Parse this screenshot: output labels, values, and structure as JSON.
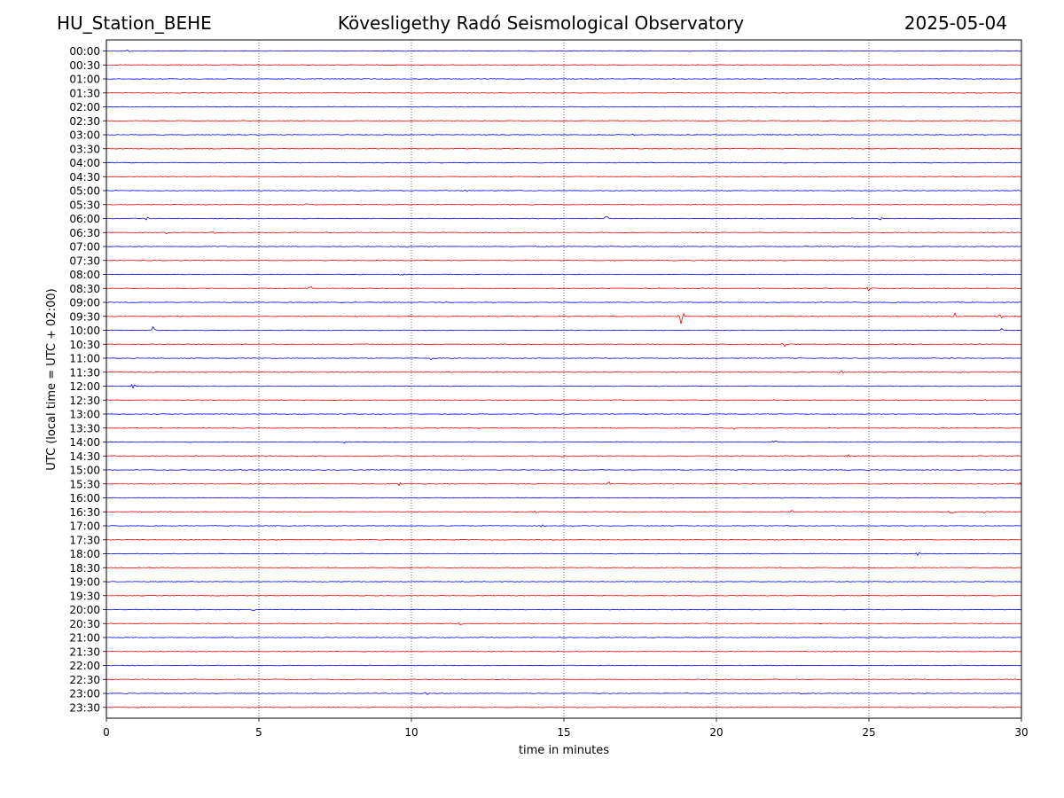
{
  "header": {
    "station": "HU_Station_BEHE",
    "title": "Kövesligethy Radó Seismological Observatory",
    "date": "2025-05-04"
  },
  "chart_data": {
    "type": "line",
    "title": "Kövesligethy Radó Seismological Observatory",
    "xlabel": "time in minutes",
    "ylabel": "UTC (local time = UTC + 02:00)",
    "xlim": [
      0,
      30
    ],
    "xticks": [
      0,
      5,
      10,
      15,
      20,
      25,
      30
    ],
    "grid": "vertical dotted at x ticks",
    "trace_colors": [
      "#0000ff",
      "#ff0000"
    ],
    "rows": [
      "00:00",
      "00:30",
      "01:00",
      "01:30",
      "02:00",
      "02:30",
      "03:00",
      "03:30",
      "04:00",
      "04:30",
      "05:00",
      "05:30",
      "06:00",
      "06:30",
      "07:00",
      "07:30",
      "08:00",
      "08:30",
      "09:00",
      "09:30",
      "10:00",
      "10:30",
      "11:00",
      "11:30",
      "12:00",
      "12:30",
      "13:00",
      "13:30",
      "14:00",
      "14:30",
      "15:00",
      "15:30",
      "16:00",
      "16:30",
      "17:00",
      "17:30",
      "18:00",
      "18:30",
      "19:00",
      "19:30",
      "20:00",
      "20:30",
      "21:00",
      "21:30",
      "22:00",
      "22:30",
      "23:00",
      "23:30"
    ],
    "events": [
      {
        "row": "00:00",
        "t": 0.7,
        "amp": 0.3
      },
      {
        "row": "03:00",
        "t": 17.3,
        "amp": 0.3
      },
      {
        "row": "05:00",
        "t": 11.8,
        "amp": 0.4
      },
      {
        "row": "05:00",
        "t": 20.4,
        "amp": 0.3
      },
      {
        "row": "05:30",
        "t": 6.6,
        "amp": 0.3
      },
      {
        "row": "06:00",
        "t": 1.35,
        "amp": 0.4
      },
      {
        "row": "06:00",
        "t": 16.4,
        "amp": 0.8
      },
      {
        "row": "06:00",
        "t": 24.5,
        "amp": 0.3
      },
      {
        "row": "06:00",
        "t": 25.4,
        "amp": 0.3
      },
      {
        "row": "06:30",
        "t": 3.5,
        "amp": 0.7
      },
      {
        "row": "06:30",
        "t": 2.0,
        "amp": 0.4
      },
      {
        "row": "07:00",
        "t": 9.8,
        "amp": 0.8
      },
      {
        "row": "08:00",
        "t": 9.7,
        "amp": 0.3
      },
      {
        "row": "08:30",
        "t": 6.7,
        "amp": 0.6
      },
      {
        "row": "08:30",
        "t": 25.0,
        "amp": 0.9
      },
      {
        "row": "09:30",
        "t": 18.85,
        "amp": 3.0
      },
      {
        "row": "09:30",
        "t": 27.8,
        "amp": 0.9
      },
      {
        "row": "09:30",
        "t": 29.3,
        "amp": 0.7
      },
      {
        "row": "10:00",
        "t": 1.5,
        "amp": 2.5
      },
      {
        "row": "10:00",
        "t": 29.4,
        "amp": 0.8
      },
      {
        "row": "10:30",
        "t": 22.2,
        "amp": 0.7
      },
      {
        "row": "11:00",
        "t": 10.7,
        "amp": 0.8
      },
      {
        "row": "11:00",
        "t": 27.7,
        "amp": 0.3
      },
      {
        "row": "11:30",
        "t": 24.1,
        "amp": 0.4
      },
      {
        "row": "12:00",
        "t": 0.85,
        "amp": 0.6
      },
      {
        "row": "13:30",
        "t": 20.6,
        "amp": 0.3
      },
      {
        "row": "14:00",
        "t": 7.8,
        "amp": 0.4
      },
      {
        "row": "14:00",
        "t": 21.9,
        "amp": 0.4
      },
      {
        "row": "14:30",
        "t": 14.9,
        "amp": 0.4
      },
      {
        "row": "14:30",
        "t": 24.3,
        "amp": 0.4
      },
      {
        "row": "15:30",
        "t": 9.6,
        "amp": 0.7
      },
      {
        "row": "15:30",
        "t": 16.5,
        "amp": 0.5
      },
      {
        "row": "15:30",
        "t": 30.0,
        "amp": 0.5
      },
      {
        "row": "16:30",
        "t": 14.1,
        "amp": 0.5
      },
      {
        "row": "16:30",
        "t": 22.5,
        "amp": 0.4
      },
      {
        "row": "16:30",
        "t": 27.7,
        "amp": 0.8
      },
      {
        "row": "16:30",
        "t": 28.8,
        "amp": 0.7
      },
      {
        "row": "17:00",
        "t": 14.3,
        "amp": 0.4
      },
      {
        "row": "18:00",
        "t": 26.6,
        "amp": 0.4
      },
      {
        "row": "20:00",
        "t": 4.8,
        "amp": 0.3
      },
      {
        "row": "20:30",
        "t": 11.6,
        "amp": 0.3
      },
      {
        "row": "23:00",
        "t": 10.5,
        "amp": 0.3
      },
      {
        "row": "23:00",
        "t": 22.8,
        "amp": 0.3
      }
    ]
  }
}
